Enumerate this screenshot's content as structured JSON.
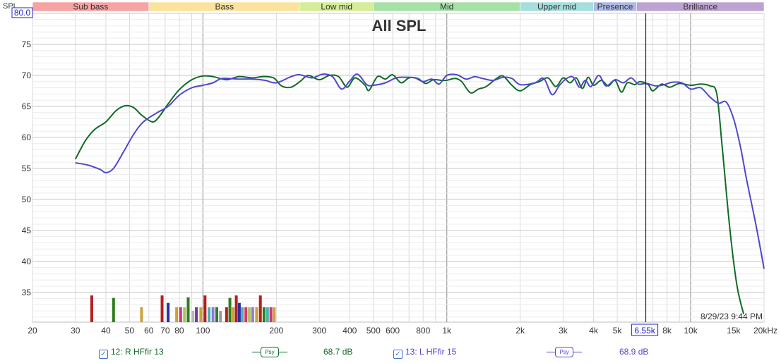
{
  "chart_data": {
    "type": "line",
    "title": "All SPL",
    "ylabel": "SPL",
    "xlabel": "",
    "x_scale": "log",
    "xlim": [
      20,
      20000
    ],
    "ylim": [
      30.2,
      80
    ],
    "y_ticks": [
      35,
      40,
      45,
      50,
      55,
      60,
      65,
      70,
      75
    ],
    "y_top_value": "80.0",
    "x_ticks": [
      {
        "v": 20,
        "label": "20"
      },
      {
        "v": 30,
        "label": "30"
      },
      {
        "v": 40,
        "label": "40"
      },
      {
        "v": 50,
        "label": "50"
      },
      {
        "v": 60,
        "label": "60"
      },
      {
        "v": 70,
        "label": "70"
      },
      {
        "v": 80,
        "label": "80"
      },
      {
        "v": 100,
        "label": "100"
      },
      {
        "v": 200,
        "label": "200"
      },
      {
        "v": 300,
        "label": "300"
      },
      {
        "v": 400,
        "label": "400"
      },
      {
        "v": 500,
        "label": "500"
      },
      {
        "v": 600,
        "label": "600"
      },
      {
        "v": 800,
        "label": "800"
      },
      {
        "v": 1000,
        "label": "1k"
      },
      {
        "v": 2000,
        "label": "2k"
      },
      {
        "v": 3000,
        "label": "3k"
      },
      {
        "v": 4000,
        "label": "4k"
      },
      {
        "v": 5000,
        "label": "5k"
      },
      {
        "v": 8000,
        "label": "8k"
      },
      {
        "v": 10000,
        "label": "10k"
      },
      {
        "v": 15000,
        "label": "15k"
      },
      {
        "v": 20000,
        "label": "20kHz"
      }
    ],
    "cursor": {
      "x": 6550,
      "label": "6.55k"
    },
    "timestamp": "8/29/23 9:44 PM",
    "bands": [
      {
        "name": "Sub bass",
        "from": 20,
        "to": 60,
        "color": "#f6a3a3"
      },
      {
        "name": "Bass",
        "from": 60,
        "to": 250,
        "color": "#fae39c"
      },
      {
        "name": "Low mid",
        "from": 250,
        "to": 500,
        "color": "#d6ec98"
      },
      {
        "name": "Mid",
        "from": 500,
        "to": 2000,
        "color": "#a6e0a6"
      },
      {
        "name": "Upper mid",
        "from": 2000,
        "to": 4000,
        "color": "#a4dedd"
      },
      {
        "name": "Presence",
        "from": 4000,
        "to": 6000,
        "color": "#adb9e6"
      },
      {
        "name": "Brilliance",
        "from": 6000,
        "to": 20000,
        "color": "#bda3d2"
      }
    ],
    "series": [
      {
        "name": "12: R HFfir 13",
        "color": "#0f6b25",
        "readout": "68.7 dB",
        "points": [
          [
            30,
            56.5
          ],
          [
            33,
            59.5
          ],
          [
            36,
            61.3
          ],
          [
            40,
            62.5
          ],
          [
            44,
            64.3
          ],
          [
            48,
            65.1
          ],
          [
            52,
            64.8
          ],
          [
            56,
            63.6
          ],
          [
            62,
            62.5
          ],
          [
            66,
            63.3
          ],
          [
            72,
            65.4
          ],
          [
            80,
            67.7
          ],
          [
            90,
            69.3
          ],
          [
            100,
            69.9
          ],
          [
            110,
            69.8
          ],
          [
            125,
            69.3
          ],
          [
            140,
            69.8
          ],
          [
            160,
            69.6
          ],
          [
            175,
            69.8
          ],
          [
            195,
            69.6
          ],
          [
            210,
            68.3
          ],
          [
            230,
            68.1
          ],
          [
            250,
            69.0
          ],
          [
            270,
            70.0
          ],
          [
            300,
            69.3
          ],
          [
            330,
            70.0
          ],
          [
            360,
            69.8
          ],
          [
            390,
            68.1
          ],
          [
            420,
            69.6
          ],
          [
            460,
            68.5
          ],
          [
            480,
            67.6
          ],
          [
            520,
            69.8
          ],
          [
            560,
            69.4
          ],
          [
            600,
            70.1
          ],
          [
            650,
            68.8
          ],
          [
            700,
            69.6
          ],
          [
            760,
            69.5
          ],
          [
            820,
            68.7
          ],
          [
            880,
            69.3
          ],
          [
            950,
            69.2
          ],
          [
            1000,
            69.2
          ],
          [
            1080,
            69.5
          ],
          [
            1150,
            69.0
          ],
          [
            1250,
            67.2
          ],
          [
            1350,
            67.8
          ],
          [
            1450,
            68.2
          ],
          [
            1600,
            69.5
          ],
          [
            1700,
            69.9
          ],
          [
            1850,
            68.4
          ],
          [
            2000,
            67.5
          ],
          [
            2200,
            68.5
          ],
          [
            2400,
            69.0
          ],
          [
            2600,
            69.6
          ],
          [
            2800,
            68.2
          ],
          [
            3000,
            69.6
          ],
          [
            3200,
            68.8
          ],
          [
            3400,
            69.6
          ],
          [
            3600,
            67.9
          ],
          [
            3800,
            69.7
          ],
          [
            4000,
            68.4
          ],
          [
            4300,
            69.2
          ],
          [
            4600,
            68.3
          ],
          [
            4900,
            69.2
          ],
          [
            5200,
            67.3
          ],
          [
            5500,
            68.8
          ],
          [
            5900,
            68.5
          ],
          [
            6200,
            69.0
          ],
          [
            6700,
            68.5
          ],
          [
            7000,
            67.5
          ],
          [
            7600,
            68.6
          ],
          [
            8200,
            68.1
          ],
          [
            9000,
            68.7
          ],
          [
            10000,
            68.4
          ],
          [
            11000,
            68.6
          ],
          [
            12000,
            68.3
          ],
          [
            12800,
            67.0
          ],
          [
            13500,
            58.0
          ],
          [
            14500,
            45.0
          ],
          [
            15500,
            36.0
          ],
          [
            16500,
            31.5
          ]
        ]
      },
      {
        "name": "13: L HFfir 15",
        "color": "#4f47cf",
        "readout": "68.9 dB",
        "points": [
          [
            30,
            55.9
          ],
          [
            34,
            55.5
          ],
          [
            38,
            54.8
          ],
          [
            40,
            54.3
          ],
          [
            43,
            55.0
          ],
          [
            47,
            57.5
          ],
          [
            52,
            60.5
          ],
          [
            57,
            62.5
          ],
          [
            65,
            64.0
          ],
          [
            72,
            65.0
          ],
          [
            80,
            66.8
          ],
          [
            90,
            68.0
          ],
          [
            100,
            68.4
          ],
          [
            110,
            68.8
          ],
          [
            120,
            69.5
          ],
          [
            140,
            69.4
          ],
          [
            160,
            69.4
          ],
          [
            180,
            69.2
          ],
          [
            200,
            68.8
          ],
          [
            230,
            69.8
          ],
          [
            250,
            70.1
          ],
          [
            280,
            69.6
          ],
          [
            310,
            70.2
          ],
          [
            340,
            69.8
          ],
          [
            370,
            67.8
          ],
          [
            400,
            69.1
          ],
          [
            430,
            70.2
          ],
          [
            470,
            68.5
          ],
          [
            500,
            68.4
          ],
          [
            560,
            68.8
          ],
          [
            620,
            69.6
          ],
          [
            680,
            69.7
          ],
          [
            740,
            69.6
          ],
          [
            800,
            69.0
          ],
          [
            870,
            69.4
          ],
          [
            930,
            68.6
          ],
          [
            1000,
            70.0
          ],
          [
            1100,
            70.1
          ],
          [
            1200,
            69.4
          ],
          [
            1300,
            69.8
          ],
          [
            1400,
            69.5
          ],
          [
            1550,
            69.2
          ],
          [
            1700,
            69.7
          ],
          [
            1850,
            69.5
          ],
          [
            2000,
            68.5
          ],
          [
            2300,
            68.8
          ],
          [
            2500,
            69.5
          ],
          [
            2700,
            66.9
          ],
          [
            2900,
            68.4
          ],
          [
            3100,
            69.5
          ],
          [
            3300,
            69.7
          ],
          [
            3500,
            68.1
          ],
          [
            3700,
            69.2
          ],
          [
            3900,
            68.2
          ],
          [
            4200,
            70.0
          ],
          [
            4500,
            68.3
          ],
          [
            4900,
            69.3
          ],
          [
            5300,
            68.8
          ],
          [
            5700,
            69.6
          ],
          [
            6100,
            68.6
          ],
          [
            6600,
            68.7
          ],
          [
            7200,
            68.3
          ],
          [
            7800,
            68.5
          ],
          [
            8400,
            68.9
          ],
          [
            9200,
            68.8
          ],
          [
            10000,
            67.8
          ],
          [
            11000,
            68.0
          ],
          [
            12000,
            66.5
          ],
          [
            13000,
            65.5
          ],
          [
            14000,
            65.7
          ],
          [
            15000,
            63.0
          ],
          [
            16000,
            58.5
          ],
          [
            17000,
            53.0
          ],
          [
            18500,
            46.0
          ],
          [
            20000,
            38.8
          ]
        ]
      }
    ],
    "bottom_bars": [
      {
        "f": 35,
        "h": 34.5,
        "c": "#b51f1f"
      },
      {
        "f": 43,
        "h": 34.1,
        "c": "#2f7d1d"
      },
      {
        "f": 56,
        "h": 32.6,
        "c": "#c9a23c"
      },
      {
        "f": 68,
        "h": 34.5,
        "c": "#b51f1f"
      },
      {
        "f": 72,
        "h": 33.3,
        "c": "#2a2fa5"
      },
      {
        "f": 78,
        "h": 32.6,
        "c": "#c9a23c"
      },
      {
        "f": 81,
        "h": 32.6,
        "c": "#d8336e"
      },
      {
        "f": 84,
        "h": 32.6,
        "c": "#a9c45c"
      },
      {
        "f": 87,
        "h": 34.2,
        "c": "#2f7d1d"
      },
      {
        "f": 91,
        "h": 32.0,
        "c": "#b8b8b8"
      },
      {
        "f": 94,
        "h": 32.6,
        "c": "#6e3b9c"
      },
      {
        "f": 98,
        "h": 32.6,
        "c": "#c9a23c"
      },
      {
        "f": 102,
        "h": 34.5,
        "c": "#b51f1f"
      },
      {
        "f": 106,
        "h": 32.6,
        "c": "#4ab0b0"
      },
      {
        "f": 110,
        "h": 32.6,
        "c": "#8f7ad9"
      },
      {
        "f": 114,
        "h": 32.6,
        "c": "#2f7d1d"
      },
      {
        "f": 118,
        "h": 32.0,
        "c": "#9a9a9a"
      },
      {
        "f": 125,
        "h": 32.6,
        "c": "#b51f1f"
      },
      {
        "f": 129,
        "h": 34.1,
        "c": "#2f7d1d"
      },
      {
        "f": 133,
        "h": 32.6,
        "c": "#c9a23c"
      },
      {
        "f": 137,
        "h": 34.5,
        "c": "#b51f1f"
      },
      {
        "f": 141,
        "h": 33.3,
        "c": "#2a2fa5"
      },
      {
        "f": 145,
        "h": 32.6,
        "c": "#4ab0b0"
      },
      {
        "f": 150,
        "h": 32.6,
        "c": "#d8336e"
      },
      {
        "f": 155,
        "h": 32.6,
        "c": "#a9c45c"
      },
      {
        "f": 160,
        "h": 32.6,
        "c": "#8f7ad9"
      },
      {
        "f": 166,
        "h": 32.6,
        "c": "#c9a23c"
      },
      {
        "f": 172,
        "h": 34.5,
        "c": "#b51f1f"
      },
      {
        "f": 178,
        "h": 32.6,
        "c": "#2f7d1d"
      },
      {
        "f": 184,
        "h": 32.6,
        "c": "#4ab0b0"
      },
      {
        "f": 190,
        "h": 32.6,
        "c": "#d8336e"
      },
      {
        "f": 196,
        "h": 32.6,
        "c": "#c9a23c"
      }
    ]
  },
  "legend": [
    {
      "checkbox": "✓",
      "label": "12: R HFfir 13",
      "badge": "Psy",
      "readout": "68.7 dB",
      "color": "#0f6b25"
    },
    {
      "checkbox": "✓",
      "label": "13: L HFfir 15",
      "badge": "Psy",
      "readout": "68.9 dB",
      "color": "#4f47cf"
    }
  ]
}
